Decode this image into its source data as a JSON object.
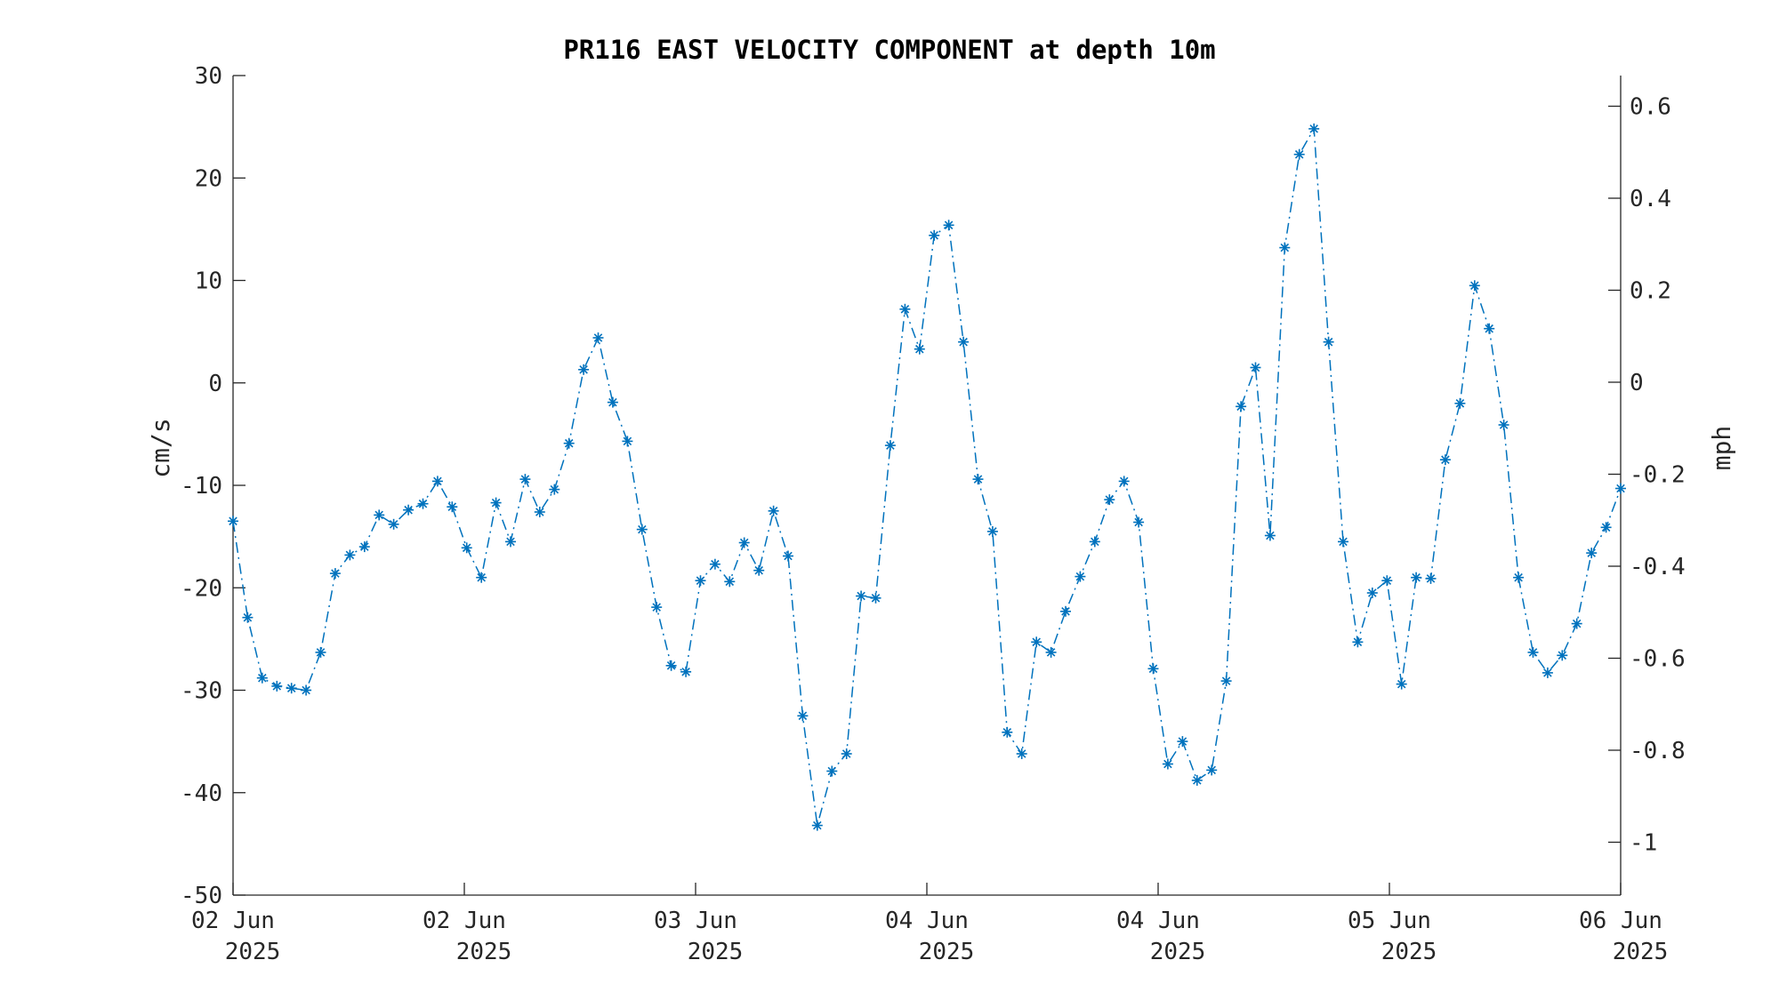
{
  "chart_data": {
    "type": "line",
    "title": "PR116 EAST VELOCITY COMPONENT at depth 10m",
    "ylabel_left": "cm/s",
    "ylabel_right": "mph",
    "ylim_left": [
      -50,
      30
    ],
    "yticks_left": [
      30,
      20,
      10,
      0,
      -10,
      -20,
      -30,
      -40,
      -50
    ],
    "ytick_labels_left": [
      "30",
      "20",
      "10",
      "0",
      "-10",
      "-20",
      "-30",
      "-40",
      "-50"
    ],
    "yticks_right": [
      0.6,
      0.4,
      0.2,
      0,
      -0.2,
      -0.4,
      -0.6,
      -0.8,
      -1
    ],
    "ytick_labels_right": [
      "0.6",
      "0.4",
      "0.2",
      "0",
      "-0.2",
      "-0.4",
      "-0.6",
      "-0.8",
      "-1"
    ],
    "xlim_days": [
      0,
      6
    ],
    "xtick_labels": [
      {
        "day": "02 Jun",
        "year": "2025"
      },
      {
        "day": "02 Jun",
        "year": "2025"
      },
      {
        "day": "03 Jun",
        "year": "2025"
      },
      {
        "day": "04 Jun",
        "year": "2025"
      },
      {
        "day": "04 Jun",
        "year": "2025"
      },
      {
        "day": "05 Jun",
        "year": "2025"
      },
      {
        "day": "06 Jun",
        "year": "2025"
      }
    ],
    "grid": false,
    "marker": "asterisk",
    "line_style": "dash-dot",
    "color": "#0072BD",
    "series": [
      {
        "values": [
          -13.5,
          -22.9,
          -28.8,
          -29.6,
          -29.8,
          -30.0,
          -26.3,
          -18.6,
          -16.8,
          -16.0,
          -12.9,
          -13.8,
          -12.4,
          -11.8,
          -9.6,
          -12.1,
          -16.1,
          -19.0,
          -11.7,
          -15.5,
          -9.4,
          -12.6,
          -10.4,
          -5.9,
          1.3,
          4.4,
          -1.9,
          -5.7,
          -14.3,
          -21.9,
          -27.6,
          -28.2,
          -19.3,
          -17.7,
          -19.4,
          -15.6,
          -18.3,
          -12.5,
          -16.9,
          -32.5,
          -43.2,
          -37.9,
          -36.2,
          -20.8,
          -21.0,
          -6.1,
          7.2,
          3.3,
          14.4,
          15.4,
          4.0,
          -9.4,
          -14.5,
          -34.1,
          -36.2,
          -25.3,
          -26.3,
          -22.3,
          -18.9,
          -15.5,
          -11.4,
          -9.6,
          -13.6,
          -27.9,
          -37.2,
          -35.0,
          -38.8,
          -37.8,
          -29.1,
          -2.3,
          1.5,
          -14.9,
          13.2,
          22.3,
          24.8,
          4.0,
          -15.5,
          -25.3,
          -20.5,
          -19.3,
          -29.4,
          -19.0,
          -19.1,
          -7.5,
          -2.0,
          9.5,
          5.3,
          -4.1,
          -19.0,
          -26.3,
          -28.3,
          -26.6,
          -23.5,
          -16.6,
          -14.1,
          -10.3
        ]
      }
    ]
  }
}
